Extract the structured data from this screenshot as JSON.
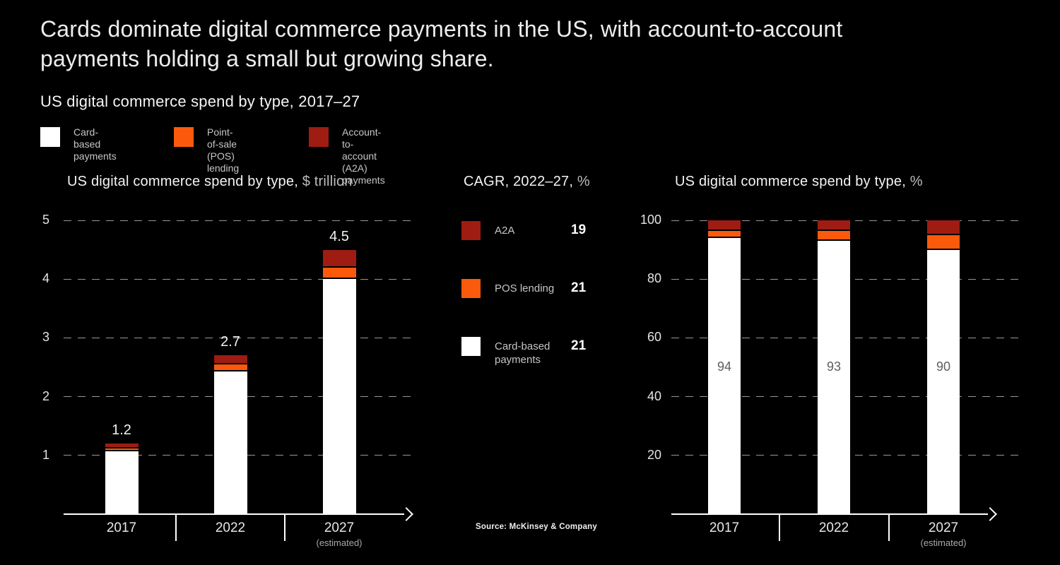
{
  "header": {
    "title_line1": "Cards dominate digital commerce payments in the US, with account-to-account",
    "title_line2": "payments holding a small but growing share.",
    "subtitle": "US digital commerce spend by type, 2017–27"
  },
  "colors": {
    "card": "#ffffff",
    "pos": "#fb5a0c",
    "a2a": "#9e1c12",
    "background": "#000000",
    "grid": "#989898"
  },
  "legend": {
    "items": [
      {
        "key": "card",
        "label": "Card-based\npayments"
      },
      {
        "key": "pos",
        "label": "Point-of-sale\n(POS) lending"
      },
      {
        "key": "a2a",
        "label": "Account-to-account\n(A2A) payments"
      }
    ]
  },
  "cagr": {
    "title_main": "CAGR, 2022–27,",
    "title_unit": " %",
    "items": [
      {
        "key": "a2a",
        "label": "A2A",
        "value": "19"
      },
      {
        "key": "pos",
        "label": "POS lending",
        "value": "21"
      },
      {
        "key": "card",
        "label": "Card-based\npayments",
        "value": "21"
      }
    ]
  },
  "source": "Source: McKinsey & Company",
  "chart_data": [
    {
      "id": "spend_trillion",
      "type": "bar",
      "stacked": true,
      "title_main": "US digital commerce spend by type,",
      "title_unit": " $ trillion",
      "categories": [
        "2017",
        "2022",
        "2027"
      ],
      "category_notes": [
        "",
        "",
        "(estimated)"
      ],
      "total_labels": [
        "1.2",
        "2.7",
        "4.5"
      ],
      "series": [
        {
          "name": "Card-based payments",
          "key": "card",
          "values": [
            1.07,
            2.43,
            4.0
          ]
        },
        {
          "name": "Point-of-sale (POS) lending",
          "key": "pos",
          "values": [
            0.05,
            0.12,
            0.2
          ]
        },
        {
          "name": "Account-to-account (A2A) payments",
          "key": "a2a",
          "values": [
            0.08,
            0.15,
            0.3
          ]
        }
      ],
      "totals": [
        1.2,
        2.7,
        4.5
      ],
      "ylim": [
        0,
        5
      ],
      "yticks": [
        1,
        2,
        3,
        4,
        5
      ],
      "grid": "dashed",
      "legend_position": "top"
    },
    {
      "id": "spend_percent",
      "type": "bar",
      "stacked": true,
      "title_main": "US digital commerce spend by type,",
      "title_unit": " %",
      "categories": [
        "2017",
        "2022",
        "2027"
      ],
      "category_notes": [
        "",
        "",
        "(estimated)"
      ],
      "bar_labels": [
        "94",
        "93",
        "90"
      ],
      "series": [
        {
          "name": "Card-based payments",
          "key": "card",
          "values": [
            94.0,
            93.0,
            90.0
          ]
        },
        {
          "name": "Point-of-sale (POS) lending",
          "key": "pos",
          "values": [
            2.5,
            3.5,
            5.0
          ]
        },
        {
          "name": "Account-to-account (A2A) payments",
          "key": "a2a",
          "values": [
            3.5,
            3.5,
            5.0
          ]
        }
      ],
      "ylim": [
        0,
        100
      ],
      "yticks": [
        20,
        40,
        60,
        80,
        100
      ],
      "grid": "dashed",
      "legend_position": "top"
    }
  ]
}
